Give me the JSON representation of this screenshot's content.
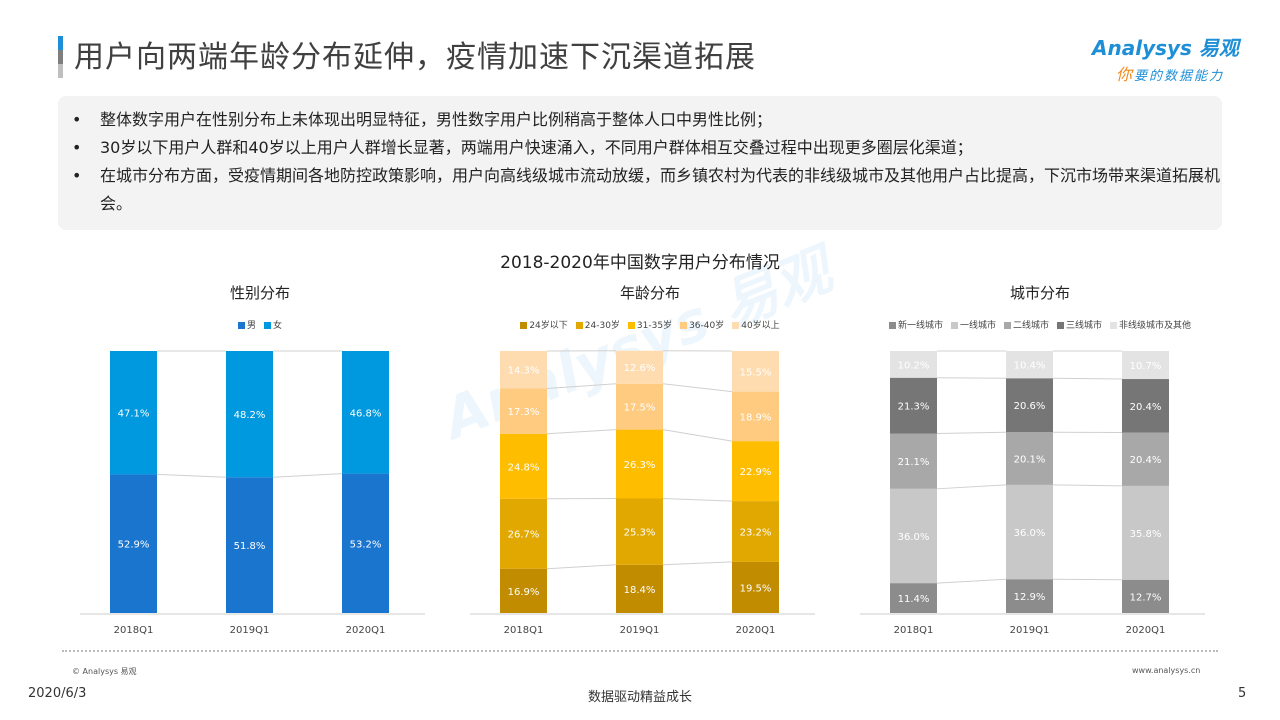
{
  "header": {
    "title": "用户向两端年龄分布延伸，疫情加速下沉渠道拓展",
    "title_bar_colors": [
      "#1e8fd6",
      "#7f7f7f",
      "#bfbfbf"
    ]
  },
  "logo": {
    "brand": "Analysys 易观",
    "slogan_accent": "你",
    "slogan_rest": "要的数据能力"
  },
  "summary": {
    "bullet": "•",
    "items": [
      "整体数字用户在性别分布上未体现出明显特征，男性数字用户比例稍高于整体人口中男性比例；",
      "30岁以下用户人群和40岁以上用户人群增长显著，两端用户快速涌入，不同用户群体相互交叠过程中出现更多圈层化渠道；",
      "在城市分布方面，受疫情期间各地防控政策影响，用户向高线级城市流动放缓，而乡镇农村为代表的非线级城市及其他用户占比提高，下沉市场带来渠道拓展机会。"
    ]
  },
  "main_title": "2018-2020年中国数字用户分布情况",
  "chart_data": [
    {
      "type": "bar",
      "stacked": true,
      "title": "性别分布",
      "categories": [
        "2018Q1",
        "2019Q1",
        "2020Q1"
      ],
      "ylim": [
        0,
        100
      ],
      "legend": "top",
      "series": [
        {
          "name": "男",
          "color": "#1a75cf",
          "values": [
            52.9,
            51.8,
            53.2
          ]
        },
        {
          "name": "女",
          "color": "#0098de",
          "values": [
            47.1,
            48.2,
            46.8
          ]
        }
      ]
    },
    {
      "type": "bar",
      "stacked": true,
      "title": "年龄分布",
      "categories": [
        "2018Q1",
        "2019Q1",
        "2020Q1"
      ],
      "ylim": [
        0,
        100
      ],
      "legend": "top",
      "series": [
        {
          "name": "24岁以下",
          "color": "#c18c00",
          "values": [
            16.9,
            18.4,
            19.5
          ]
        },
        {
          "name": "24-30岁",
          "color": "#e0a800",
          "values": [
            26.7,
            25.3,
            23.2
          ]
        },
        {
          "name": "31-35岁",
          "color": "#ffbd00",
          "values": [
            24.8,
            26.3,
            22.9
          ]
        },
        {
          "name": "36-40岁",
          "color": "#ffcb80",
          "values": [
            17.3,
            17.5,
            18.9
          ]
        },
        {
          "name": "40岁以上",
          "color": "#ffdcb0",
          "values": [
            14.3,
            12.6,
            15.5
          ]
        }
      ]
    },
    {
      "type": "bar",
      "stacked": true,
      "title": "城市分布",
      "categories": [
        "2018Q1",
        "2019Q1",
        "2020Q1"
      ],
      "ylim": [
        0,
        100
      ],
      "legend": "top",
      "series": [
        {
          "name": "新一线城市",
          "color": "#8c8c8c",
          "values": [
            11.4,
            12.9,
            12.7
          ]
        },
        {
          "name": "一线城市",
          "color": "#c8c8c8",
          "values": [
            36.0,
            36.0,
            35.8
          ]
        },
        {
          "name": "二线城市",
          "color": "#a8a8a8",
          "values": [
            21.1,
            20.1,
            20.4
          ]
        },
        {
          "name": "三线城市",
          "color": "#767676",
          "values": [
            21.3,
            20.6,
            20.4
          ]
        },
        {
          "name": "非线级城市及其他",
          "color": "#e3e3e3",
          "values": [
            10.2,
            10.4,
            10.7
          ]
        }
      ]
    }
  ],
  "footer": {
    "copyright": "© Analysys 易观",
    "url": "www.analysys.cn",
    "date": "2020/6/3",
    "slogan": "数据驱动精益成长",
    "page": "5"
  }
}
